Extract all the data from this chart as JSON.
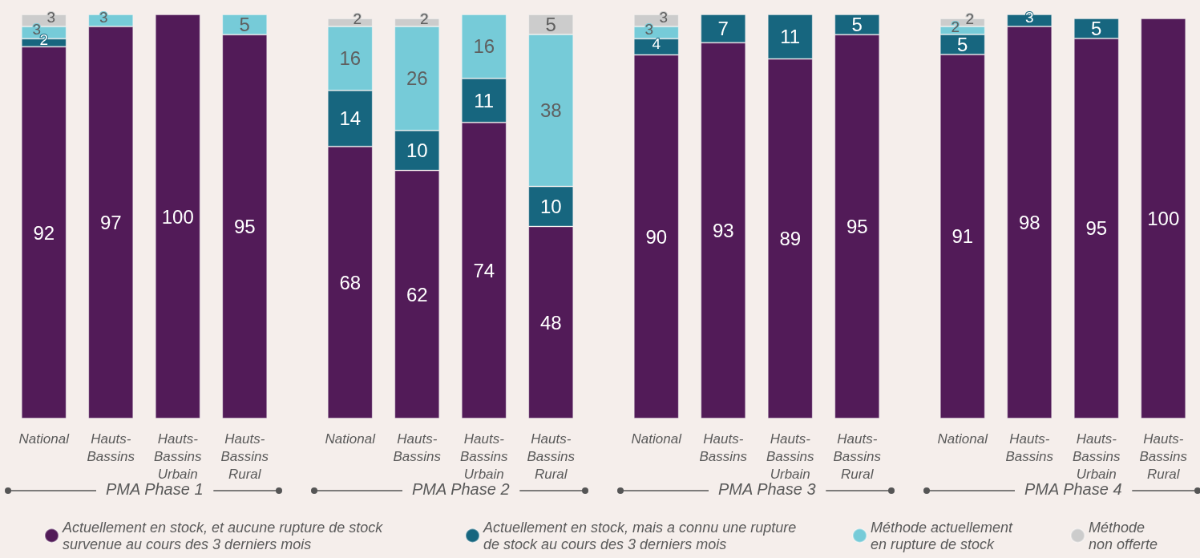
{
  "chart_data": [
    {
      "type": "bar",
      "stacked": true,
      "data_labels": true,
      "tick_labels": "x",
      "legend": "bottom",
      "xlabel": "PMA Phase 1",
      "categories": [
        "National",
        "Hauts-Bassins",
        "Hauts-Bassins Urbain",
        "Hauts-Bassins Rural"
      ],
      "series": [
        {
          "name": "Actuellement en stock, et aucune rupture de stock survenue au cours des 3 derniers mois",
          "color": "#521b58",
          "values": [
            92,
            97,
            100,
            95
          ]
        },
        {
          "name": "Actuellement en stock, mais a connu une rupture de stock au cours des 3 derniers mois",
          "color": "#17667f",
          "values": [
            2,
            null,
            null,
            null
          ]
        },
        {
          "name": "Méthode actuellement en rupture de stock",
          "color": "#76cbd8",
          "values": [
            3,
            3,
            null,
            5
          ]
        },
        {
          "name": "Méthode non offerte",
          "color": "#cccccc",
          "values": [
            3,
            null,
            null,
            null
          ]
        }
      ]
    },
    {
      "type": "bar",
      "stacked": true,
      "data_labels": true,
      "tick_labels": "x",
      "xlabel": "PMA Phase 2",
      "categories": [
        "National",
        "Hauts-Bassins",
        "Hauts-Bassins Urbain",
        "Hauts-Bassins Rural"
      ],
      "series": [
        {
          "color": "#521b58",
          "values": [
            68,
            62,
            74,
            48
          ]
        },
        {
          "color": "#17667f",
          "values": [
            14,
            10,
            11,
            10
          ]
        },
        {
          "color": "#76cbd8",
          "values": [
            16,
            26,
            16,
            38
          ]
        },
        {
          "color": "#cccccc",
          "values": [
            2,
            2,
            null,
            5
          ]
        }
      ]
    },
    {
      "type": "bar",
      "stacked": true,
      "data_labels": true,
      "tick_labels": "x",
      "xlabel": "PMA Phase 3",
      "categories": [
        "National",
        "Hauts-Bassins",
        "Hauts-Bassins Urbain",
        "Hauts-Bassins Rural"
      ],
      "series": [
        {
          "color": "#521b58",
          "values": [
            90,
            93,
            89,
            95
          ]
        },
        {
          "color": "#17667f",
          "values": [
            4,
            7,
            11,
            5
          ]
        },
        {
          "color": "#76cbd8",
          "values": [
            3,
            null,
            null,
            null
          ]
        },
        {
          "color": "#cccccc",
          "values": [
            3,
            null,
            null,
            null
          ]
        }
      ]
    },
    {
      "type": "bar",
      "stacked": true,
      "data_labels": true,
      "tick_labels": "x",
      "xlabel": "PMA Phase 4",
      "categories": [
        "National",
        "Hauts-Bassins",
        "Hauts-Bassins Urbain",
        "Hauts-Bassins Rural"
      ],
      "series": [
        {
          "color": "#521b58",
          "values": [
            91,
            98,
            95,
            100
          ]
        },
        {
          "color": "#17667f",
          "values": [
            5,
            3,
            5,
            null
          ]
        },
        {
          "color": "#76cbd8",
          "values": [
            2,
            null,
            null,
            null
          ]
        },
        {
          "color": "#cccccc",
          "values": [
            2,
            null,
            null,
            null
          ]
        }
      ]
    }
  ]
}
